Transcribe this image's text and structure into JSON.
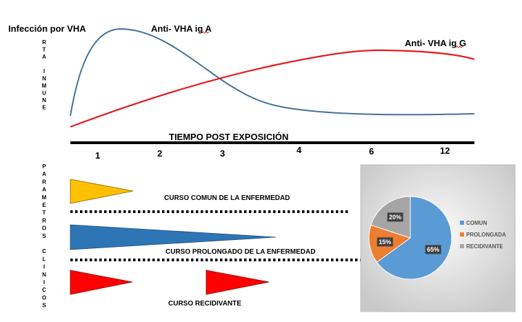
{
  "top_graph": {
    "label_infection": "Infección  por  VHA",
    "label_iga": "Anti- VHA  ig A",
    "label_igg": "Anti- VHA  ig G",
    "y_axis_label": "RTA INMUNE",
    "x_axis_label": "TIEMPO POST EXPOSICIÓN",
    "ticks": [
      "1",
      "2",
      "3",
      "4",
      "6",
      "12"
    ]
  },
  "parameters": {
    "y_label": "PARAMETROS CLINICOS",
    "course_common": "CURSO COMUN DE LA ENFERMEDAD",
    "course_prolonged": "CURSO PROLONGADO DE LA ENFERMEDAD",
    "course_relapsing": "CURSO RECIDIVANTE"
  },
  "colors": {
    "iga_curve": "#41719c",
    "igg_curve": "#e31c1c",
    "triangle_common": "#ffc000",
    "triangle_prolonged": "#2e75b6",
    "triangle_relapsing": "#ff0000",
    "pie_panel_bg": "#d9d9d9"
  },
  "chart_data": {
    "type": "pie",
    "categories": [
      "COMUN",
      "PROLONGADA",
      "RECIDIVANTE"
    ],
    "values": [
      65,
      15,
      20
    ],
    "data_labels": [
      "65%",
      "15%",
      "20%"
    ],
    "colors": [
      "#5b9bd5",
      "#ed7d31",
      "#a5a5a5"
    ],
    "legend_position": "right"
  }
}
